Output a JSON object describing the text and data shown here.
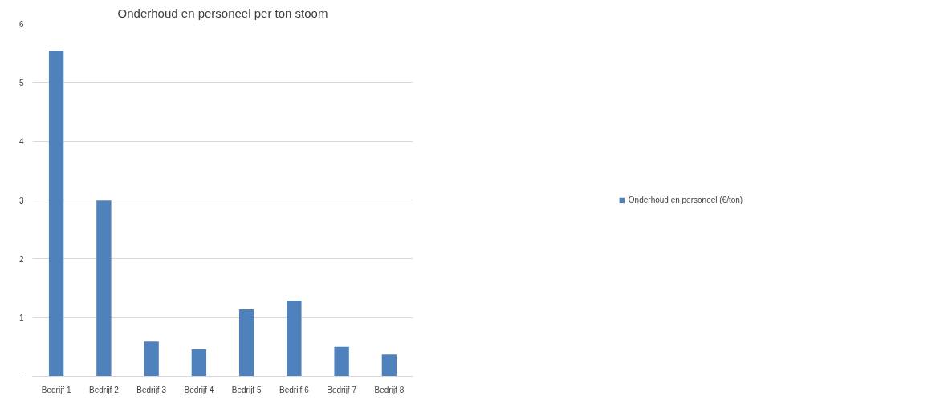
{
  "chart_data": {
    "type": "bar",
    "title": "Onderhoud en personeel per ton stoom",
    "categories": [
      "Bedrijf 1",
      "Bedrijf 2",
      "Bedrijf 3",
      "Bedrijf 4",
      "Bedrijf 5",
      "Bedrijf 6",
      "Bedrijf 7",
      "Bedrijf 8"
    ],
    "series": [
      {
        "name": "Onderhoud en personeel (€/ton)",
        "color": "#4f81bd",
        "values": [
          5.54,
          2.99,
          0.59,
          0.46,
          1.14,
          1.29,
          0.5,
          0.37
        ]
      }
    ],
    "ylim": [
      0,
      6
    ],
    "yticks": [
      {
        "value": 0,
        "label": "-"
      },
      1,
      2,
      3,
      4,
      5,
      6
    ],
    "grid": "y",
    "legend": "right"
  }
}
